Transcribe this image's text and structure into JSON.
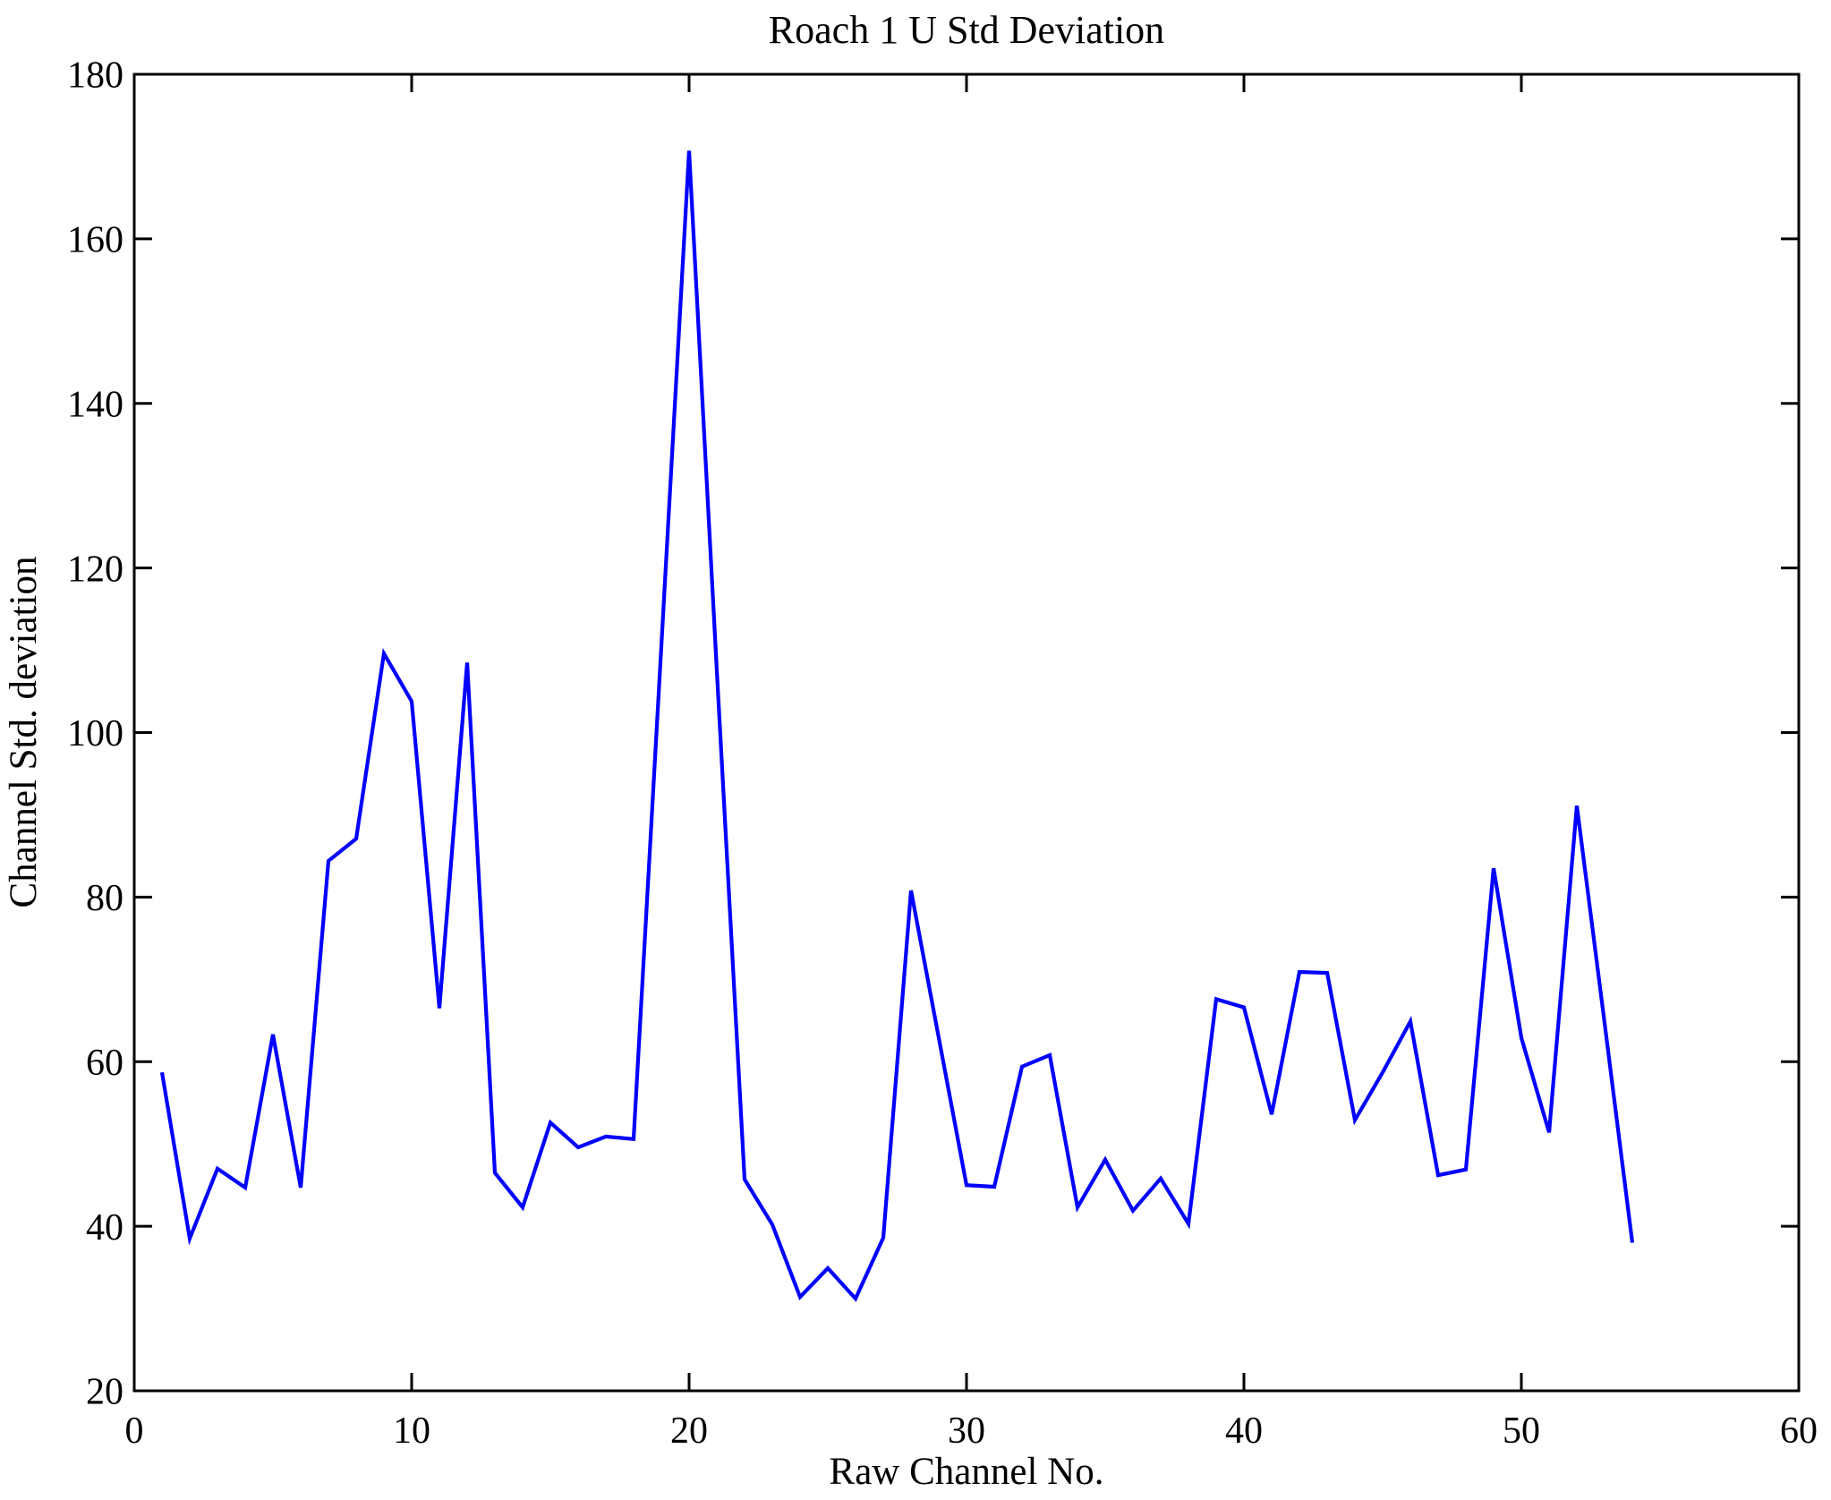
{
  "figure": {
    "title": "Roach 1 U Std Deviation",
    "xlabel": "Raw Channel No.",
    "ylabel": "Channel Std. deviation"
  },
  "chart_data": {
    "type": "line",
    "title": "Roach 1 U Std Deviation",
    "xlabel": "Raw Channel No.",
    "ylabel": "Channel Std. deviation",
    "xlim": [
      0,
      60
    ],
    "ylim": [
      20,
      180
    ],
    "xticks": [
      0,
      10,
      20,
      30,
      40,
      50,
      60
    ],
    "yticks": [
      20,
      40,
      60,
      80,
      100,
      120,
      140,
      160,
      180
    ],
    "grid": false,
    "legend_position": "none",
    "line_color": "#0000FF",
    "axis_color": "#000000",
    "background_color": "#FFFFFF",
    "series": [
      {
        "name": "channel-std-deviation",
        "x": [
          1,
          2,
          3,
          4,
          5,
          6,
          7,
          8,
          9,
          10,
          11,
          12,
          13,
          14,
          15,
          16,
          17,
          18,
          19,
          20,
          21,
          22,
          23,
          24,
          25,
          26,
          27,
          28,
          29,
          30,
          31,
          32,
          33,
          34,
          35,
          36,
          37,
          38,
          39,
          40,
          41,
          42,
          43,
          44,
          45,
          46,
          47,
          48,
          49,
          50,
          51,
          52,
          53,
          54
        ],
        "values": [
          58.7,
          38.5,
          47.0,
          44.7,
          63.3,
          44.7,
          84.4,
          87.1,
          109.6,
          103.8,
          66.5,
          108.5,
          46.5,
          42.3,
          52.6,
          49.6,
          50.9,
          50.6,
          110.5,
          170.7,
          107.5,
          45.7,
          40.2,
          31.4,
          34.9,
          31.2,
          38.6,
          80.8,
          62.9,
          45.0,
          44.8,
          59.4,
          60.8,
          42.3,
          48.1,
          41.9,
          45.8,
          40.3,
          67.6,
          66.6,
          53.6,
          70.9,
          70.8,
          52.9,
          58.7,
          64.9,
          46.2,
          46.9,
          83.5,
          62.9,
          51.4,
          91.1,
          64.7,
          38.0
        ]
      }
    ]
  }
}
